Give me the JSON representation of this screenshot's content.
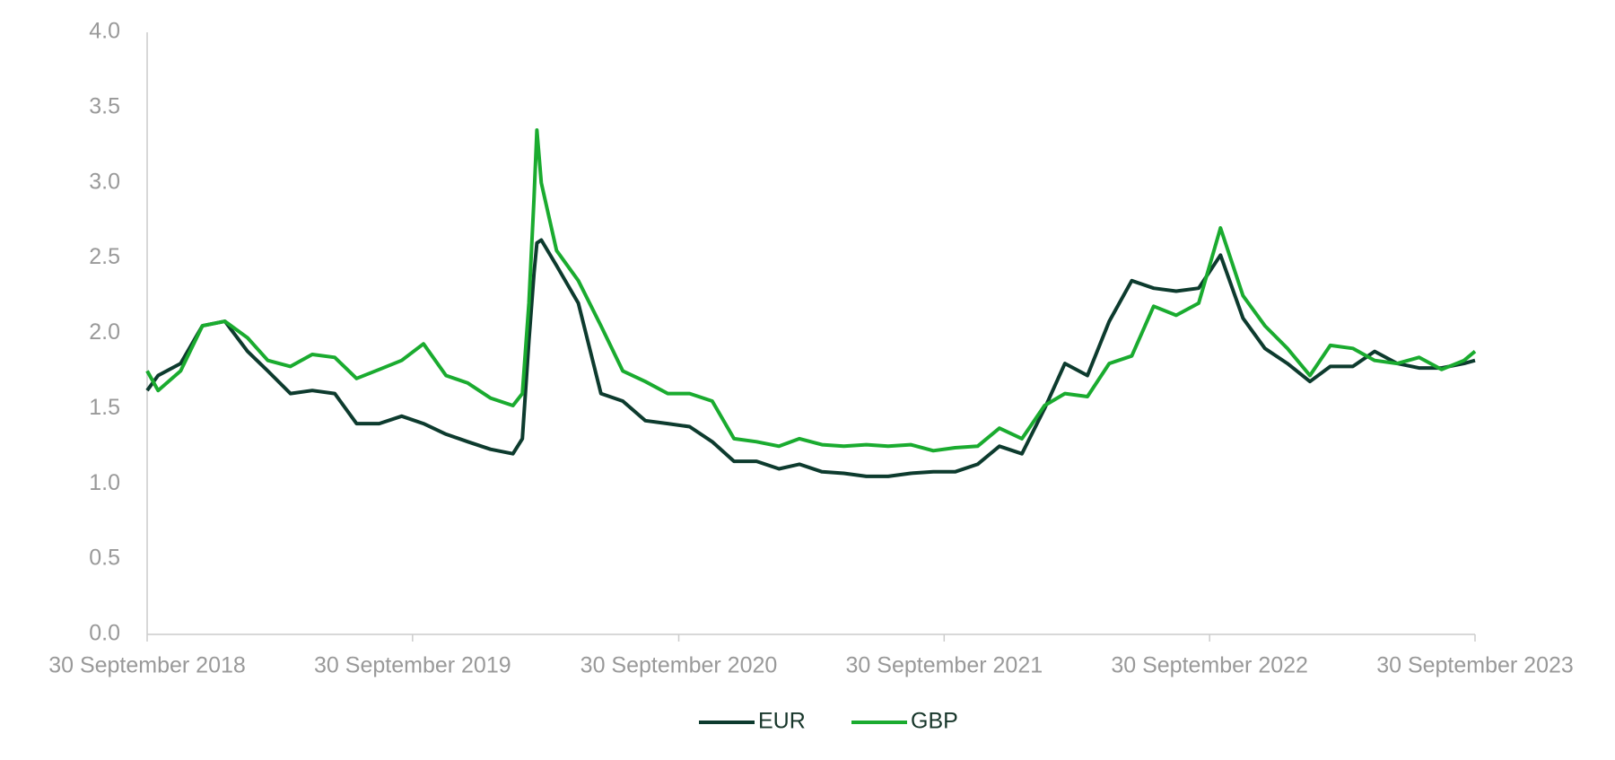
{
  "chart_data": {
    "type": "line",
    "x": [
      "2018-09-30",
      "2018-10-15",
      "2018-11-15",
      "2018-12-15",
      "2019-01-15",
      "2019-02-15",
      "2019-03-15",
      "2019-04-15",
      "2019-05-15",
      "2019-06-15",
      "2019-07-15",
      "2019-08-15",
      "2019-09-15",
      "2019-10-15",
      "2019-11-15",
      "2019-12-15",
      "2020-01-15",
      "2020-02-15",
      "2020-02-28",
      "2020-03-08",
      "2020-03-15",
      "2020-03-19",
      "2020-03-25",
      "2020-04-15",
      "2020-05-15",
      "2020-06-15",
      "2020-07-15",
      "2020-08-15",
      "2020-09-15",
      "2020-10-15",
      "2020-11-15",
      "2020-12-15",
      "2021-01-15",
      "2021-02-15",
      "2021-03-15",
      "2021-04-15",
      "2021-05-15",
      "2021-06-15",
      "2021-07-15",
      "2021-08-15",
      "2021-09-15",
      "2021-10-15",
      "2021-11-15",
      "2021-12-15",
      "2022-01-15",
      "2022-02-15",
      "2022-03-15",
      "2022-04-15",
      "2022-05-15",
      "2022-06-15",
      "2022-07-15",
      "2022-08-15",
      "2022-09-15",
      "2022-10-15",
      "2022-11-15",
      "2022-12-15",
      "2023-01-15",
      "2023-02-15",
      "2023-03-15",
      "2023-04-15",
      "2023-05-15",
      "2023-06-15",
      "2023-07-15",
      "2023-08-15",
      "2023-09-15",
      "2023-09-30"
    ],
    "series": [
      {
        "name": "EUR",
        "color": "#0d3b2e",
        "values": [
          1.62,
          1.72,
          1.8,
          2.05,
          2.08,
          1.88,
          1.75,
          1.6,
          1.62,
          1.6,
          1.4,
          1.4,
          1.45,
          1.4,
          1.33,
          1.28,
          1.23,
          1.2,
          1.3,
          1.95,
          2.4,
          2.6,
          2.62,
          2.45,
          2.2,
          1.6,
          1.55,
          1.42,
          1.4,
          1.38,
          1.28,
          1.15,
          1.15,
          1.1,
          1.13,
          1.08,
          1.07,
          1.05,
          1.05,
          1.07,
          1.08,
          1.08,
          1.13,
          1.25,
          1.2,
          1.5,
          1.8,
          1.72,
          2.08,
          2.35,
          2.3,
          2.28,
          2.3,
          2.52,
          2.1,
          1.9,
          1.8,
          1.68,
          1.78,
          1.78,
          1.88,
          1.8,
          1.77,
          1.77,
          1.8,
          1.82
        ]
      },
      {
        "name": "GBP",
        "color": "#1aab2f",
        "values": [
          1.75,
          1.62,
          1.75,
          2.05,
          2.08,
          1.97,
          1.82,
          1.78,
          1.86,
          1.84,
          1.7,
          1.76,
          1.82,
          1.93,
          1.72,
          1.67,
          1.57,
          1.52,
          1.6,
          2.2,
          2.9,
          3.35,
          3.0,
          2.55,
          2.35,
          2.05,
          1.75,
          1.68,
          1.6,
          1.6,
          1.55,
          1.3,
          1.28,
          1.25,
          1.3,
          1.26,
          1.25,
          1.26,
          1.25,
          1.26,
          1.22,
          1.24,
          1.25,
          1.37,
          1.3,
          1.52,
          1.6,
          1.58,
          1.8,
          1.85,
          2.18,
          2.12,
          2.2,
          2.7,
          2.25,
          2.05,
          1.9,
          1.72,
          1.92,
          1.9,
          1.82,
          1.8,
          1.84,
          1.76,
          1.82,
          1.88
        ]
      }
    ],
    "xlim": [
      "2018-09-30",
      "2023-09-30"
    ],
    "xticks": [
      {
        "value": "2018-09-30",
        "label": "30 September 2018"
      },
      {
        "value": "2019-09-30",
        "label": "30 September 2019"
      },
      {
        "value": "2020-09-30",
        "label": "30 September 2020"
      },
      {
        "value": "2021-09-30",
        "label": "30 September 2021"
      },
      {
        "value": "2022-09-30",
        "label": "30 September 2022"
      },
      {
        "value": "2023-09-30",
        "label": "30 September 2023"
      }
    ],
    "ylim": [
      0,
      4
    ],
    "yticks": [
      {
        "value": 0,
        "label": "0.0"
      },
      0.5,
      {
        "value": 1,
        "label": "1.0"
      },
      1.5,
      {
        "value": 2,
        "label": "2.0"
      },
      2.5,
      {
        "value": 3,
        "label": "3.0"
      },
      3.5,
      {
        "value": 4,
        "label": "4.0"
      }
    ],
    "grid": false,
    "legend": "bottom"
  }
}
